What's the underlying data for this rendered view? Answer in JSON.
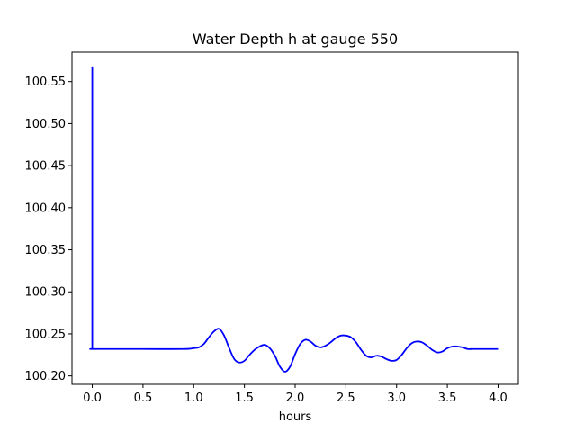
{
  "chart_data": {
    "type": "line",
    "title": "Water Depth h at gauge 550",
    "xlabel": "hours",
    "ylabel": "",
    "xlim": [
      -0.2,
      4.2
    ],
    "ylim": [
      100.19,
      100.585
    ],
    "xticks": [
      0.0,
      0.5,
      1.0,
      1.5,
      2.0,
      2.5,
      3.0,
      3.5,
      4.0
    ],
    "xtick_labels": [
      "0.0",
      "0.5",
      "1.0",
      "1.5",
      "2.0",
      "2.5",
      "3.0",
      "3.5",
      "4.0"
    ],
    "yticks": [
      100.2,
      100.25,
      100.3,
      100.35,
      100.4,
      100.45,
      100.5,
      100.55
    ],
    "ytick_labels": [
      "100.20",
      "100.25",
      "100.30",
      "100.35",
      "100.40",
      "100.45",
      "100.50",
      "100.55"
    ],
    "grid": false,
    "series": [
      {
        "color": "#0000ff",
        "x": [
          0.0,
          0.0,
          0.02,
          0.5,
          0.9,
          1.0,
          1.05,
          1.1,
          1.15,
          1.2,
          1.25,
          1.3,
          1.35,
          1.4,
          1.45,
          1.5,
          1.55,
          1.6,
          1.65,
          1.7,
          1.75,
          1.8,
          1.85,
          1.9,
          1.95,
          2.0,
          2.05,
          2.1,
          2.15,
          2.2,
          2.25,
          2.3,
          2.35,
          2.4,
          2.45,
          2.5,
          2.55,
          2.6,
          2.65,
          2.7,
          2.75,
          2.8,
          2.85,
          2.9,
          2.95,
          3.0,
          3.05,
          3.1,
          3.15,
          3.2,
          3.25,
          3.3,
          3.35,
          3.4,
          3.45,
          3.5,
          3.55,
          3.6,
          3.65,
          3.7,
          3.75,
          3.8,
          3.85,
          3.9,
          3.95,
          4.0
        ],
        "y": [
          100.568,
          100.232,
          100.232,
          100.232,
          100.232,
          100.233,
          100.234,
          100.238,
          100.246,
          100.253,
          100.256,
          100.248,
          100.233,
          100.22,
          100.216,
          100.218,
          100.225,
          100.231,
          100.235,
          100.237,
          100.233,
          100.224,
          100.211,
          100.205,
          100.211,
          100.226,
          100.238,
          100.243,
          100.241,
          100.236,
          100.234,
          100.236,
          100.24,
          100.245,
          100.248,
          100.248,
          100.246,
          100.24,
          100.231,
          100.224,
          100.222,
          100.224,
          100.223,
          100.22,
          100.218,
          100.219,
          100.225,
          100.233,
          100.239,
          100.241,
          100.24,
          100.236,
          100.231,
          100.228,
          100.229,
          100.233,
          100.235,
          100.235,
          100.234,
          100.232,
          100.232,
          100.232,
          100.232,
          100.232,
          100.232,
          100.232
        ]
      }
    ]
  }
}
